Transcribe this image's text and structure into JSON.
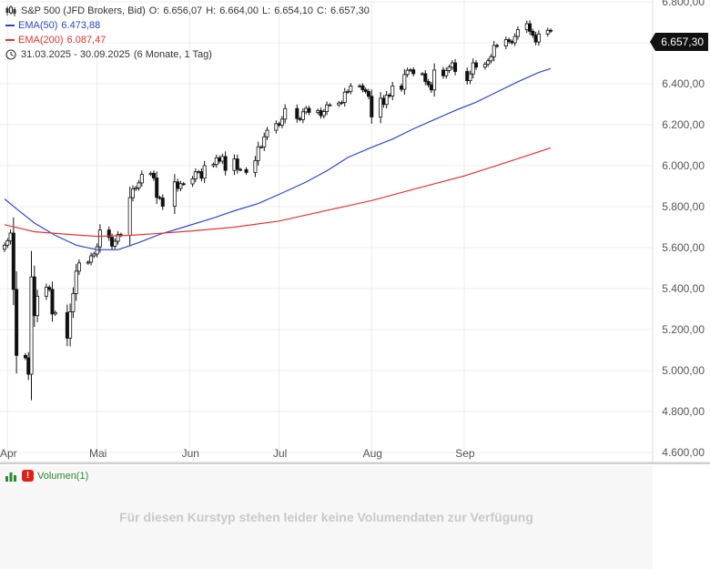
{
  "legend": {
    "instrument": "S&P 500 (JFD Brokers, Bid)",
    "ohlc": {
      "o_label": "O:",
      "o": "6.656,07",
      "h_label": "H:",
      "h": "6.664,00",
      "l_label": "L:",
      "l": "6.654,10",
      "c_label": "C:",
      "c": "6.657,30"
    },
    "ema50_label": "EMA(50)",
    "ema50_value": "6.473,88",
    "ema200_label": "EMA(200)",
    "ema200_value": "6.087,47",
    "range": "31.03.2025 - 30.09.2025",
    "period": "(6 Monate, 1 Tag)"
  },
  "last_price": "6.657,30",
  "volume": {
    "label": "Volumen(1)",
    "message": "Für diesen Kurstyp stehen leider keine Volumendaten zur Verfügung"
  },
  "colors": {
    "ema50": "#2b47d8",
    "ema200": "#e8332f",
    "candle": "#111111",
    "grid": "#ececec",
    "volume_label": "#2a8a2a"
  },
  "chart_data": {
    "type": "candlestick",
    "x_range": [
      "2025-03-31",
      "2025-09-30"
    ],
    "ylim": [
      4600,
      6850
    ],
    "y_ticks": [
      "6.800,00",
      "6.600,00",
      "6.400,00",
      "6.200,00",
      "6.000,00",
      "5.800,00",
      "5.600,00",
      "5.400,00",
      "5.200,00",
      "5.000,00",
      "4.800,00",
      "4.600,00"
    ],
    "y_tick_values": [
      6800,
      6600,
      6400,
      6200,
      6000,
      5800,
      5600,
      5400,
      5200,
      5000,
      4800,
      4600
    ],
    "x_ticks": [
      "Apr",
      "Mai",
      "Jun",
      "Jul",
      "Aug",
      "Sep"
    ],
    "x_tick_dates": [
      "2025-04-01",
      "2025-05-01",
      "2025-06-01",
      "2025-07-01",
      "2025-08-01",
      "2025-09-01"
    ],
    "close_series": [
      [
        "2025-03-31",
        5612
      ],
      [
        "2025-04-01",
        5633
      ],
      [
        "2025-04-02",
        5671
      ],
      [
        "2025-04-03",
        5396
      ],
      [
        "2025-04-04",
        5074
      ],
      [
        "2025-04-07",
        5062
      ],
      [
        "2025-04-08",
        4982
      ],
      [
        "2025-04-09",
        5457
      ],
      [
        "2025-04-10",
        5268
      ],
      [
        "2025-04-11",
        5363
      ],
      [
        "2025-04-14",
        5406
      ],
      [
        "2025-04-15",
        5396
      ],
      [
        "2025-04-16",
        5276
      ],
      [
        "2025-04-17",
        5283
      ],
      [
        "2025-04-21",
        5158
      ],
      [
        "2025-04-22",
        5287
      ],
      [
        "2025-04-23",
        5376
      ],
      [
        "2025-04-24",
        5485
      ],
      [
        "2025-04-25",
        5525
      ],
      [
        "2025-04-28",
        5529
      ],
      [
        "2025-04-29",
        5560
      ],
      [
        "2025-04-30",
        5569
      ],
      [
        "2025-05-01",
        5604
      ],
      [
        "2025-05-02",
        5686
      ],
      [
        "2025-05-05",
        5650
      ],
      [
        "2025-05-06",
        5607
      ],
      [
        "2025-05-07",
        5631
      ],
      [
        "2025-05-08",
        5664
      ],
      [
        "2025-05-09",
        5660
      ],
      [
        "2025-05-12",
        5844
      ],
      [
        "2025-05-13",
        5886
      ],
      [
        "2025-05-14",
        5892
      ],
      [
        "2025-05-15",
        5916
      ],
      [
        "2025-05-16",
        5958
      ],
      [
        "2025-05-19",
        5963
      ],
      [
        "2025-05-20",
        5940
      ],
      [
        "2025-05-21",
        5845
      ],
      [
        "2025-05-22",
        5842
      ],
      [
        "2025-05-23",
        5802
      ],
      [
        "2025-05-27",
        5921
      ],
      [
        "2025-05-28",
        5889
      ],
      [
        "2025-05-29",
        5912
      ],
      [
        "2025-05-30",
        5911
      ],
      [
        "2025-06-02",
        5936
      ],
      [
        "2025-06-03",
        5970
      ],
      [
        "2025-06-04",
        5971
      ],
      [
        "2025-06-05",
        5939
      ],
      [
        "2025-06-06",
        6000
      ],
      [
        "2025-06-09",
        6006
      ],
      [
        "2025-06-10",
        6038
      ],
      [
        "2025-06-11",
        6022
      ],
      [
        "2025-06-12",
        6045
      ],
      [
        "2025-06-13",
        5977
      ],
      [
        "2025-06-16",
        6033
      ],
      [
        "2025-06-17",
        5982
      ],
      [
        "2025-06-18",
        5981
      ],
      [
        "2025-06-20",
        5967
      ],
      [
        "2025-06-23",
        6025
      ],
      [
        "2025-06-24",
        6092
      ],
      [
        "2025-06-25",
        6092
      ],
      [
        "2025-06-26",
        6141
      ],
      [
        "2025-06-27",
        6173
      ],
      [
        "2025-06-30",
        6205
      ],
      [
        "2025-07-01",
        6198
      ],
      [
        "2025-07-02",
        6227
      ],
      [
        "2025-07-03",
        6279
      ],
      [
        "2025-07-07",
        6230
      ],
      [
        "2025-07-08",
        6225
      ],
      [
        "2025-07-09",
        6263
      ],
      [
        "2025-07-10",
        6280
      ],
      [
        "2025-07-11",
        6260
      ],
      [
        "2025-07-14",
        6269
      ],
      [
        "2025-07-15",
        6244
      ],
      [
        "2025-07-16",
        6264
      ],
      [
        "2025-07-17",
        6297
      ],
      [
        "2025-07-18",
        6297
      ],
      [
        "2025-07-21",
        6306
      ],
      [
        "2025-07-22",
        6309
      ],
      [
        "2025-07-23",
        6359
      ],
      [
        "2025-07-24",
        6363
      ],
      [
        "2025-07-25",
        6389
      ],
      [
        "2025-07-28",
        6390
      ],
      [
        "2025-07-29",
        6371
      ],
      [
        "2025-07-30",
        6362
      ],
      [
        "2025-07-31",
        6339
      ],
      [
        "2025-08-01",
        6238
      ],
      [
        "2025-08-04",
        6329
      ],
      [
        "2025-08-05",
        6299
      ],
      [
        "2025-08-06",
        6345
      ],
      [
        "2025-08-07",
        6340
      ],
      [
        "2025-08-08",
        6389
      ],
      [
        "2025-08-11",
        6373
      ],
      [
        "2025-08-12",
        6445
      ],
      [
        "2025-08-13",
        6466
      ],
      [
        "2025-08-14",
        6468
      ],
      [
        "2025-08-15",
        6449
      ],
      [
        "2025-08-18",
        6449
      ],
      [
        "2025-08-19",
        6411
      ],
      [
        "2025-08-20",
        6395
      ],
      [
        "2025-08-21",
        6370
      ],
      [
        "2025-08-22",
        6467
      ],
      [
        "2025-08-25",
        6439
      ],
      [
        "2025-08-26",
        6465
      ],
      [
        "2025-08-27",
        6481
      ],
      [
        "2025-08-28",
        6502
      ],
      [
        "2025-08-29",
        6460
      ],
      [
        "2025-09-02",
        6415
      ],
      [
        "2025-09-03",
        6448
      ],
      [
        "2025-09-04",
        6502
      ],
      [
        "2025-09-05",
        6481
      ],
      [
        "2025-09-08",
        6495
      ],
      [
        "2025-09-09",
        6512
      ],
      [
        "2025-09-10",
        6532
      ],
      [
        "2025-09-11",
        6587
      ],
      [
        "2025-09-12",
        6584
      ],
      [
        "2025-09-15",
        6615
      ],
      [
        "2025-09-16",
        6606
      ],
      [
        "2025-09-17",
        6600
      ],
      [
        "2025-09-18",
        6631
      ],
      [
        "2025-09-19",
        6664
      ],
      [
        "2025-09-22",
        6693
      ],
      [
        "2025-09-23",
        6656
      ],
      [
        "2025-09-24",
        6637
      ],
      [
        "2025-09-25",
        6604
      ],
      [
        "2025-09-26",
        6643
      ],
      [
        "2025-09-29",
        6661
      ],
      [
        "2025-09-30",
        6657
      ]
    ],
    "series": [
      {
        "name": "EMA(50)",
        "points": [
          [
            "2025-03-31",
            5838
          ],
          [
            "2025-04-04",
            5790
          ],
          [
            "2025-04-10",
            5720
          ],
          [
            "2025-04-17",
            5660
          ],
          [
            "2025-04-24",
            5612
          ],
          [
            "2025-05-01",
            5590
          ],
          [
            "2025-05-08",
            5590
          ],
          [
            "2025-05-15",
            5625
          ],
          [
            "2025-05-22",
            5665
          ],
          [
            "2025-05-30",
            5700
          ],
          [
            "2025-06-09",
            5745
          ],
          [
            "2025-06-16",
            5780
          ],
          [
            "2025-06-24",
            5815
          ],
          [
            "2025-07-01",
            5860
          ],
          [
            "2025-07-10",
            5920
          ],
          [
            "2025-07-17",
            5975
          ],
          [
            "2025-07-24",
            6040
          ],
          [
            "2025-08-01",
            6090
          ],
          [
            "2025-08-08",
            6130
          ],
          [
            "2025-08-15",
            6180
          ],
          [
            "2025-08-22",
            6225
          ],
          [
            "2025-08-29",
            6270
          ],
          [
            "2025-09-05",
            6310
          ],
          [
            "2025-09-12",
            6360
          ],
          [
            "2025-09-19",
            6410
          ],
          [
            "2025-09-26",
            6455
          ],
          [
            "2025-09-30",
            6474
          ]
        ]
      },
      {
        "name": "EMA(200)",
        "points": [
          [
            "2025-03-31",
            5712
          ],
          [
            "2025-04-10",
            5678
          ],
          [
            "2025-04-21",
            5665
          ],
          [
            "2025-05-01",
            5655
          ],
          [
            "2025-05-12",
            5660
          ],
          [
            "2025-05-22",
            5670
          ],
          [
            "2025-06-02",
            5682
          ],
          [
            "2025-06-16",
            5700
          ],
          [
            "2025-07-01",
            5730
          ],
          [
            "2025-07-15",
            5775
          ],
          [
            "2025-08-01",
            5830
          ],
          [
            "2025-08-15",
            5885
          ],
          [
            "2025-09-01",
            5950
          ],
          [
            "2025-09-15",
            6015
          ],
          [
            "2025-09-30",
            6087
          ]
        ]
      }
    ]
  }
}
